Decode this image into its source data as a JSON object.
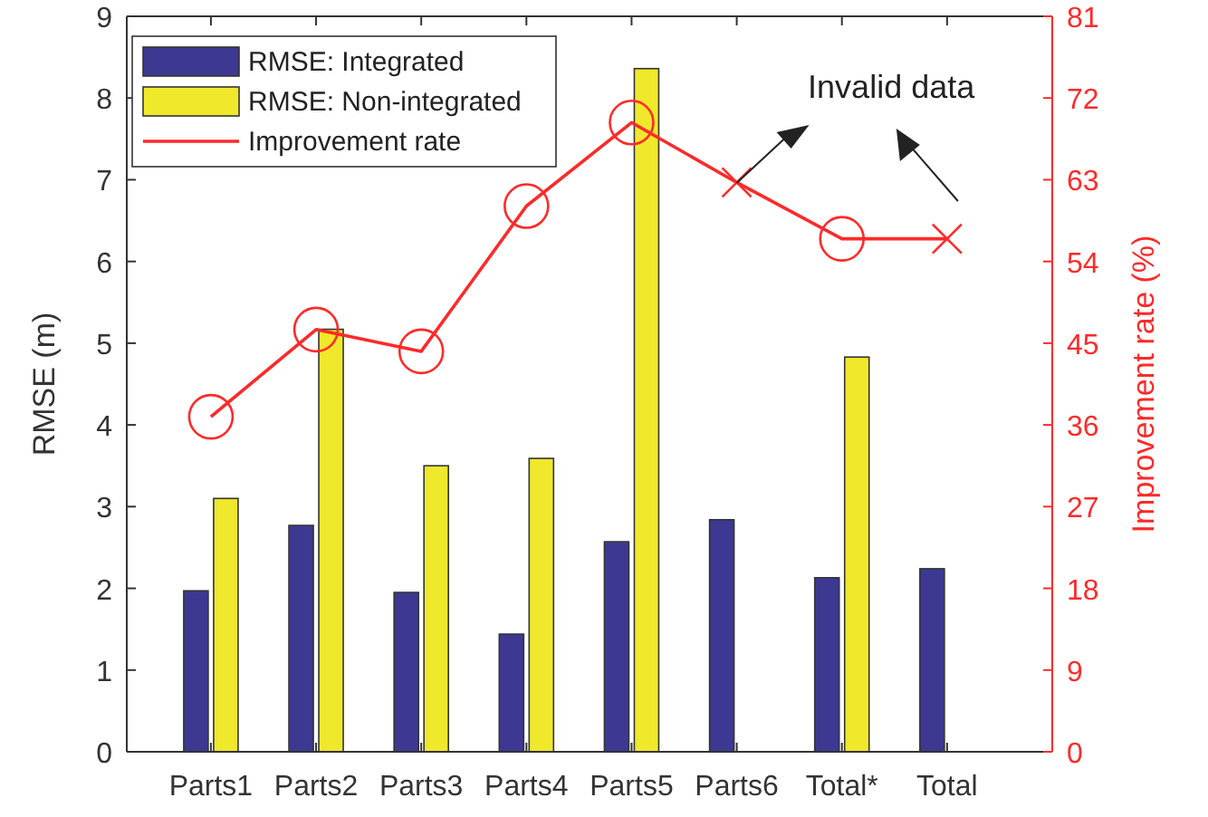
{
  "chart_data": {
    "type": "bar",
    "categories": [
      "Parts1",
      "Parts2",
      "Parts3",
      "Parts4",
      "Parts5",
      "Parts6",
      "Total*",
      "Total"
    ],
    "ylabel": "RMSE (m)",
    "y2label": "Improvement rate (%)",
    "ylim": [
      0,
      9
    ],
    "yticks": [
      0,
      1,
      2,
      3,
      4,
      5,
      6,
      7,
      8,
      9
    ],
    "y2lim": [
      0,
      81
    ],
    "y2ticks": [
      0,
      9,
      18,
      27,
      36,
      45,
      54,
      63,
      72,
      81
    ],
    "grid": false,
    "legend": "top left",
    "annotations": [
      "Invalid data"
    ],
    "series": [
      {
        "name": "RMSE: Integrated",
        "color": "#3d3993",
        "values": [
          1.97,
          2.77,
          1.95,
          1.44,
          2.57,
          2.84,
          2.13,
          2.24
        ]
      },
      {
        "name": "RMSE: Non-integrated",
        "color": "#f0e82a",
        "values": [
          3.1,
          5.17,
          3.5,
          3.59,
          8.36,
          null,
          4.83,
          null
        ]
      },
      {
        "name": "Improvement rate",
        "type": "line",
        "axis": "y2",
        "color": "#ff2a2a",
        "marker": "none",
        "values": [
          36.9,
          46.5,
          44.1,
          60.1,
          69.3,
          62.7,
          56.5,
          56.5
        ]
      },
      {
        "type": "scatter",
        "axis": "y2",
        "color": "#ff2a2a",
        "marker": "circle",
        "values": [
          36.9,
          46.5,
          44.1,
          60.1,
          69.3,
          null,
          56.5,
          null
        ]
      },
      {
        "type": "scatter",
        "axis": "y2",
        "color": "#ff2a2a",
        "marker": "cross",
        "values": [
          null,
          null,
          null,
          null,
          null,
          62.7,
          null,
          56.5
        ]
      }
    ]
  }
}
